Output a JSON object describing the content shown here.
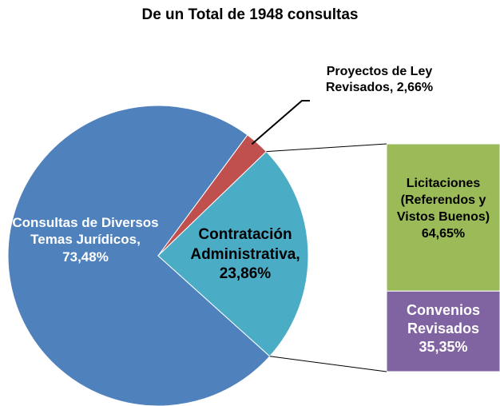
{
  "chart_data": {
    "type": "pie",
    "title": "De un Total de 1948 consultas",
    "values": [
      73.48,
      2.66,
      23.86
    ],
    "value_labels": [
      "Consultas de Diversos Temas Jurídicos, 73,48%",
      "Proyectos de Ley Revisados, 2,66%",
      "Contratación Administrativa, 23,86%"
    ],
    "colors": [
      "#4f81bd",
      "#c0504d",
      "#4bacc6"
    ],
    "bar": {
      "values": [
        64.65,
        35.35
      ],
      "value_labels": [
        "Licitaciones (Referendos y Vistos Buenos) 64,65%",
        "Convenios Revisados 35,35%"
      ],
      "colors": [
        "#9bbb59",
        "#8064a2"
      ]
    }
  }
}
